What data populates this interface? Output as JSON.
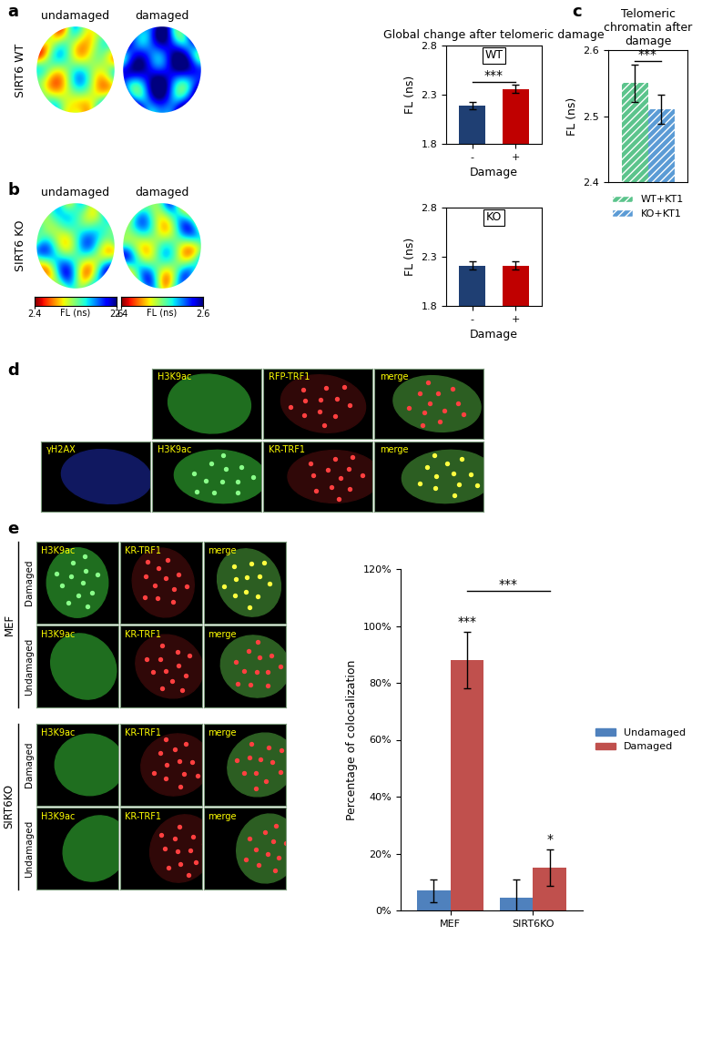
{
  "panel_labels": [
    "a",
    "b",
    "c",
    "d",
    "e"
  ],
  "chart_data": [
    {
      "type": "bar",
      "title": "Global change after telomeric damage",
      "subtitle": "WT",
      "categories": [
        "-",
        "+"
      ],
      "values": [
        2.19,
        2.36
      ],
      "errors": [
        0.04,
        0.04
      ],
      "colors": [
        "#1f3f73",
        "#c00000"
      ],
      "xlabel": "Damage",
      "ylabel": "FL (ns)",
      "ylim": [
        1.8,
        2.8
      ],
      "yticks": [
        1.8,
        2.3,
        2.8
      ],
      "annotations": [
        {
          "text": "***",
          "bars": [
            0,
            1
          ]
        }
      ]
    },
    {
      "type": "bar",
      "subtitle": "KO",
      "categories": [
        "-",
        "+"
      ],
      "values": [
        2.21,
        2.21
      ],
      "errors": [
        0.04,
        0.04
      ],
      "colors": [
        "#1f3f73",
        "#c00000"
      ],
      "xlabel": "Damage",
      "ylabel": "FL (ns)",
      "ylim": [
        1.8,
        2.8
      ],
      "yticks": [
        1.8,
        2.3,
        2.8
      ]
    },
    {
      "type": "bar",
      "title": "Telomeric chromatin after damage",
      "categories": [
        null
      ],
      "series": [
        {
          "name": "WT+KT1",
          "color": "#5cc48c",
          "values": [
            2.55
          ],
          "errors": [
            0.028
          ]
        },
        {
          "name": "KO+KT1",
          "color": "#5b9bd5",
          "values": [
            2.51
          ],
          "errors": [
            0.022
          ]
        }
      ],
      "ylabel": "FL (ns)",
      "ylim": [
        2.4,
        2.6
      ],
      "yticks": [
        2.4,
        2.5,
        2.6
      ],
      "tick_labels": "y",
      "legend": "bottom",
      "annotations": [
        {
          "text": "***",
          "bars": [
            0,
            1
          ]
        }
      ]
    },
    {
      "type": "bar",
      "categories": [
        "MEF",
        "SIRT6KO"
      ],
      "series": [
        {
          "name": "Undamaged",
          "color": "#4f81bd",
          "values": [
            7,
            4.5
          ],
          "errors": [
            4,
            6.5
          ]
        },
        {
          "name": "Damaged",
          "color": "#c0504d",
          "values": [
            88,
            15
          ],
          "errors": [
            10,
            6.5
          ]
        }
      ],
      "ylabel": "Percentage of colocalization",
      "ylim": [
        0,
        120
      ],
      "yticks": [
        {
          "value": 0,
          "label": "0%"
        },
        {
          "value": 20,
          "label": "20%"
        },
        {
          "value": 40,
          "label": "40%"
        },
        {
          "value": 60,
          "label": "60%"
        },
        {
          "value": 80,
          "label": "80%"
        },
        {
          "value": 100,
          "label": "100%"
        },
        {
          "value": 120,
          "label": "120%"
        }
      ],
      "legend": "right",
      "annotations": [
        {
          "text": "***",
          "bars": [
            1
          ]
        },
        {
          "text": "*",
          "bars": [
            3
          ]
        },
        {
          "text": "***",
          "bars": [
            1,
            3
          ]
        }
      ]
    }
  ],
  "images": {
    "a": {
      "row_label": "SIRT6 WT",
      "columns": [
        "undamaged",
        "damaged"
      ]
    },
    "b": {
      "row_label": "SIRT6 KO",
      "columns": [
        "undamaged",
        "damaged"
      ],
      "colorbar": {
        "label": "FL (ns)",
        "range": [
          2.4,
          2.6
        ],
        "ticks": [
          2.4,
          2.6
        ]
      }
    },
    "d": {
      "rows": [
        [
          null,
          "H3K9ac",
          "RFP-TRF1",
          "merge"
        ],
        [
          "γH2AX",
          "H3K9ac",
          "KR-TRF1",
          "merge"
        ]
      ]
    },
    "e": {
      "groups": [
        {
          "name": "MEF",
          "rows": [
            "Damaged",
            "Undamaged"
          ]
        },
        {
          "name": "SIRT6KO",
          "rows": [
            "Damaged",
            "Undamaged"
          ]
        }
      ],
      "columns": [
        "H3K9ac",
        "KR-TRF1",
        "merge"
      ]
    }
  }
}
